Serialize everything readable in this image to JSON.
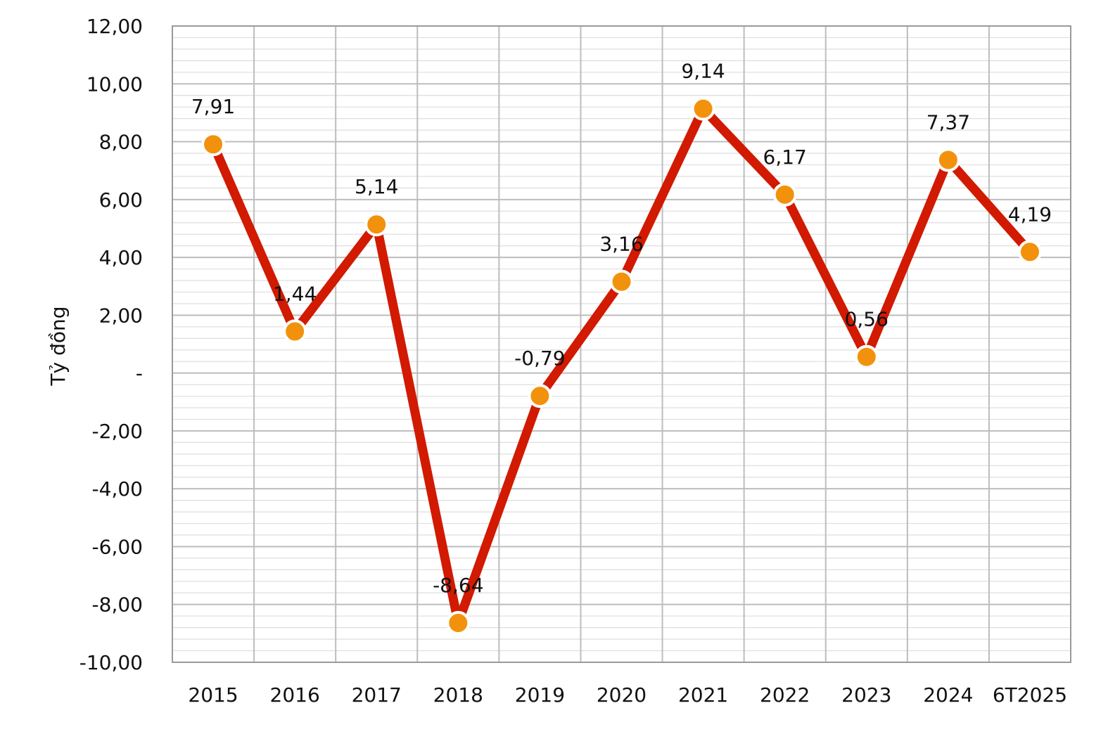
{
  "chart_data": {
    "type": "line",
    "title": "",
    "xlabel": "",
    "ylabel": "Tỷ đồng",
    "categories": [
      "2015",
      "2016",
      "2017",
      "2018",
      "2019",
      "2020",
      "2021",
      "2022",
      "2023",
      "2024",
      "6T2025"
    ],
    "series": [
      {
        "values": [
          7.91,
          1.44,
          5.14,
          -8.64,
          -0.79,
          3.16,
          9.14,
          6.17,
          0.56,
          7.37,
          4.19
        ],
        "labels": [
          "7,91",
          "1,44",
          "5,14",
          "-8,64",
          "-0,79",
          "3,16",
          "9,14",
          "6,17",
          "0,56",
          "7,37",
          "4,19"
        ],
        "line_color": "#d11a00",
        "marker_color": "#f2920c",
        "marker_edge": "#ffffff"
      }
    ],
    "ylim": [
      -10,
      12
    ],
    "y_ticks": [
      {
        "value": 12,
        "label": "12,00"
      },
      {
        "value": 10,
        "label": "10,00"
      },
      {
        "value": 8,
        "label": "8,00"
      },
      {
        "value": 6,
        "label": "6,00"
      },
      {
        "value": 4,
        "label": "4,00"
      },
      {
        "value": 2,
        "label": "2,00"
      },
      {
        "value": 0,
        "label": "-"
      },
      {
        "value": -2,
        "label": "-2,00"
      },
      {
        "value": -4,
        "label": "-4,00"
      },
      {
        "value": -6,
        "label": "-6,00"
      },
      {
        "value": -8,
        "label": "-8,00"
      },
      {
        "value": -10,
        "label": "-10,00"
      }
    ],
    "major_grid_step": 2,
    "minor_grid_step": 0.4,
    "grid": true,
    "legend": "none",
    "colors": {
      "grid_major": "#bdbdbd",
      "grid_minor": "#dedede",
      "axis": "#9a9a9a"
    }
  }
}
